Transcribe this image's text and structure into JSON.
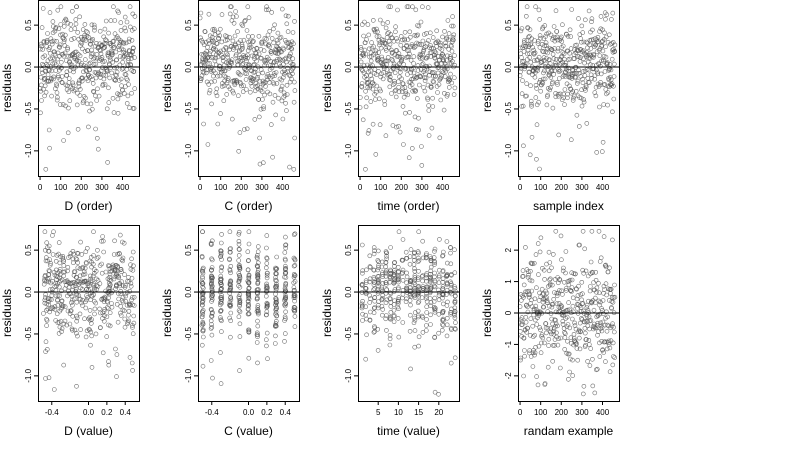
{
  "figure": {
    "background": "#ffffff",
    "point_color": "#555555",
    "axis_color": "#000000"
  },
  "chart_data": [
    {
      "type": "scatter",
      "xlabel": "D (order)",
      "ylabel": "residuals",
      "xlim": [
        -10,
        480
      ],
      "ylim": [
        -1.3,
        0.8
      ],
      "xticks": [
        0,
        100,
        200,
        300,
        400
      ],
      "xtick_labels": [
        "0",
        "100",
        "200",
        "300",
        "400"
      ],
      "yticks": [
        -1.0,
        -0.5,
        0.0,
        0.5
      ],
      "ytick_labels": [
        "-1.0",
        "-0.5",
        "0.0",
        "0.5"
      ],
      "reference_line_y": 0,
      "points": {
        "n": 460,
        "x_kind": "index",
        "y_kind": "residuals",
        "x_min": 0,
        "x_max": 460,
        "y_sd": 0.27,
        "y_min": -1.22,
        "y_max": 0.72,
        "seed": 11
      }
    },
    {
      "type": "scatter",
      "xlabel": "C (order)",
      "ylabel": "residuals",
      "xlim": [
        -10,
        480
      ],
      "ylim": [
        -1.3,
        0.8
      ],
      "xticks": [
        0,
        100,
        200,
        300,
        400
      ],
      "xtick_labels": [
        "0",
        "100",
        "200",
        "300",
        "400"
      ],
      "yticks": [
        -1.0,
        -0.5,
        0.0,
        0.5
      ],
      "ytick_labels": [
        "-1.0",
        "-0.5",
        "0.0",
        "0.5"
      ],
      "reference_line_y": 0,
      "points": {
        "n": 460,
        "x_kind": "index",
        "y_kind": "residuals",
        "x_min": 0,
        "x_max": 460,
        "y_sd": 0.27,
        "y_min": -1.22,
        "y_max": 0.72,
        "seed": 23
      }
    },
    {
      "type": "scatter",
      "xlabel": "time (order)",
      "ylabel": "residuals",
      "xlim": [
        -10,
        480
      ],
      "ylim": [
        -1.3,
        0.8
      ],
      "xticks": [
        0,
        100,
        200,
        300,
        400
      ],
      "xtick_labels": [
        "0",
        "100",
        "200",
        "300",
        "400"
      ],
      "yticks": [
        -1.0,
        -0.5,
        0.0,
        0.5
      ],
      "ytick_labels": [
        "-1.0",
        "-0.5",
        "0.0",
        "0.5"
      ],
      "reference_line_y": 0,
      "points": {
        "n": 460,
        "x_kind": "index",
        "y_kind": "residuals",
        "x_min": 0,
        "x_max": 460,
        "y_sd": 0.27,
        "y_min": -1.22,
        "y_max": 0.72,
        "seed": 37
      }
    },
    {
      "type": "scatter",
      "xlabel": "sample index",
      "ylabel": "residuals",
      "xlim": [
        -10,
        480
      ],
      "ylim": [
        -1.3,
        0.8
      ],
      "xticks": [
        0,
        100,
        200,
        300,
        400
      ],
      "xtick_labels": [
        "0",
        "100",
        "200",
        "300",
        "400"
      ],
      "yticks": [
        -1.0,
        -0.5,
        0.0,
        0.5
      ],
      "ytick_labels": [
        "-1.0",
        "-0.5",
        "0.0",
        "0.5"
      ],
      "reference_line_y": 0,
      "points": {
        "n": 460,
        "x_kind": "index",
        "y_kind": "residuals",
        "x_min": 0,
        "x_max": 460,
        "y_sd": 0.27,
        "y_min": -1.22,
        "y_max": 0.72,
        "seed": 41
      }
    },
    {
      "type": "scatter",
      "xlabel": "D (value)",
      "ylabel": "residuals",
      "xlim": [
        -0.55,
        0.55
      ],
      "ylim": [
        -1.3,
        0.8
      ],
      "xticks": [
        -0.4,
        0.0,
        0.2,
        0.4
      ],
      "xtick_labels": [
        "-0.4",
        "0.0",
        "0.2",
        "0.4"
      ],
      "yticks": [
        -1.0,
        -0.5,
        0.0,
        0.5
      ],
      "ytick_labels": [
        "-1.0",
        "-0.5",
        "0.0",
        "0.5"
      ],
      "reference_line_y": 0,
      "points": {
        "n": 460,
        "x_kind": "uniform",
        "y_kind": "residuals",
        "x_min": -0.5,
        "x_max": 0.5,
        "y_sd": 0.27,
        "y_min": -1.22,
        "y_max": 0.72,
        "seed": 53
      }
    },
    {
      "type": "scatter",
      "xlabel": "C (value)",
      "ylabel": "residuals",
      "xlim": [
        -0.55,
        0.55
      ],
      "ylim": [
        -1.3,
        0.8
      ],
      "xticks": [
        -0.4,
        0.0,
        0.2,
        0.4
      ],
      "xtick_labels": [
        "-0.4",
        "0.0",
        "0.2",
        "0.4"
      ],
      "yticks": [
        -1.0,
        -0.5,
        0.0,
        0.5
      ],
      "ytick_labels": [
        "-1.0",
        "-0.5",
        "0.0",
        "0.5"
      ],
      "reference_line_y": 0,
      "points": {
        "n": 460,
        "x_kind": "discrete",
        "x_levels": [
          -0.5,
          -0.4,
          -0.3,
          -0.2,
          -0.1,
          0.0,
          0.1,
          0.2,
          0.3,
          0.4,
          0.5
        ],
        "x_jitter": 0.008,
        "y_kind": "residuals",
        "y_sd": 0.27,
        "y_min": -1.22,
        "y_max": 0.72,
        "seed": 67
      }
    },
    {
      "type": "scatter",
      "xlabel": "time (value)",
      "ylabel": "residuals",
      "xlim": [
        0,
        25
      ],
      "ylim": [
        -1.3,
        0.8
      ],
      "xticks": [
        5,
        10,
        15,
        20
      ],
      "xtick_labels": [
        "5",
        "10",
        "15",
        "20"
      ],
      "yticks": [
        -1.0,
        -0.5,
        0.0,
        0.5
      ],
      "ytick_labels": [
        "-1.0",
        "-0.5",
        "0.0",
        "0.5"
      ],
      "reference_line_y": 0,
      "points": {
        "n": 460,
        "x_kind": "discrete",
        "x_levels": [
          1,
          2,
          3,
          4,
          5,
          6,
          7,
          8,
          9,
          10,
          11,
          12,
          13,
          14,
          15,
          16,
          17,
          18,
          19,
          20,
          21,
          22,
          23,
          24
        ],
        "x_jitter": 0.15,
        "y_kind": "residuals",
        "y_sd": 0.27,
        "y_min": -1.22,
        "y_max": 0.72,
        "seed": 79
      }
    },
    {
      "type": "scatter",
      "xlabel": "randam example",
      "ylabel": "residuals",
      "xlim": [
        -10,
        480
      ],
      "ylim": [
        -2.8,
        2.8
      ],
      "xticks": [
        0,
        100,
        200,
        300,
        400
      ],
      "xtick_labels": [
        "0",
        "100",
        "200",
        "300",
        "400"
      ],
      "yticks": [
        -2,
        -1,
        0,
        1,
        2
      ],
      "ytick_labels": [
        "-2",
        "-1",
        "0",
        "1",
        "2"
      ],
      "reference_line_y": 0,
      "points": {
        "n": 460,
        "x_kind": "index",
        "y_kind": "normal",
        "x_min": 0,
        "x_max": 460,
        "y_sd": 1.0,
        "y_min": -2.6,
        "y_max": 2.6,
        "seed": 97
      }
    }
  ]
}
